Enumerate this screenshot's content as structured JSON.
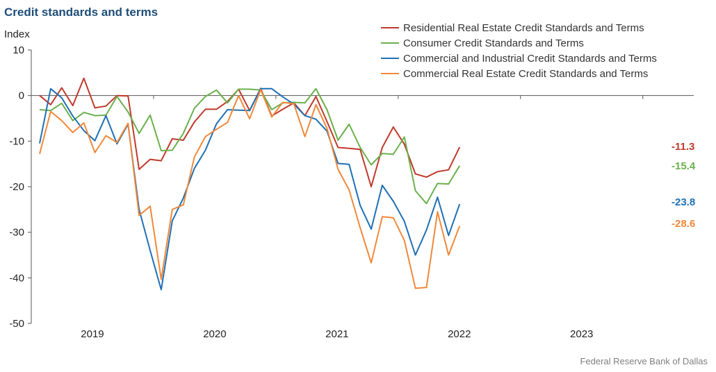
{
  "title": "Credit standards and terms",
  "source": "Federal Reserve Bank of Dallas",
  "chart_data": {
    "type": "line",
    "title": "Credit standards and terms",
    "ylabel": "Index",
    "xlabel": "",
    "ylim": [
      -50,
      10
    ],
    "yticks": [
      10,
      0,
      -10,
      -20,
      -30,
      -40,
      -50
    ],
    "ytick_labels": [
      "10",
      "0",
      "-10",
      "-20",
      "-30",
      "-40",
      "-50"
    ],
    "x_start_month": 0,
    "x_end_month": 65,
    "x_category_labels": [
      {
        "label": "2019",
        "mid_month": 6
      },
      {
        "label": "2020",
        "mid_month": 18
      },
      {
        "label": "2021",
        "mid_month": 30
      },
      {
        "label": "2022",
        "mid_month": 42
      },
      {
        "label": "2023",
        "mid_month": 54
      }
    ],
    "grid": false,
    "legend_position": "top-right",
    "series": [
      {
        "name": "Residential Real Estate Credit Standards and Terms",
        "color": "#c0392b",
        "end_label": "-11.3",
        "values": [
          0,
          -2,
          1.7,
          -2.2,
          3.8,
          -2.7,
          -2.3,
          0,
          -0.1,
          -16.2,
          -14,
          -14.3,
          -9.5,
          -9.8,
          -5.8,
          -3,
          -3,
          -1.3,
          1.4,
          -3.3,
          1.6,
          -4.5,
          -3,
          -1.6,
          -4.4,
          -0.2,
          -5.7,
          -11.4,
          -11.6,
          -11.8,
          -20,
          -11.4,
          -6.9,
          -10.7,
          -17.2,
          -17.9,
          -16.7,
          -16.3,
          -11.3
        ]
      },
      {
        "name": "Consumer Credit Standards and Terms",
        "color": "#6ab04c",
        "end_label": "-15.4",
        "values": [
          -3.1,
          -3.3,
          -1.7,
          -5.5,
          -3.7,
          -4.4,
          -4.3,
          -0.2,
          -3.6,
          -8.3,
          -4.3,
          -12.1,
          -12,
          -8.3,
          -2.8,
          -0.2,
          1.2,
          -1.6,
          1.4,
          1.4,
          1.2,
          -3.1,
          -1.6,
          -1.5,
          -1.6,
          1.5,
          -3.1,
          -9.8,
          -6.3,
          -11.4,
          -15.2,
          -12.7,
          -12.9,
          -9.1,
          -20.9,
          -23.7,
          -19.3,
          -19.4,
          -15.4
        ]
      },
      {
        "name": "Commercial and Industrial Credit Standards and Terms",
        "color": "#1f6fb5",
        "end_label": "-23.8",
        "values": [
          -10.5,
          1.5,
          -0.5,
          -4.5,
          -7.7,
          -9.9,
          -4.4,
          -10.6,
          -6.3,
          -25,
          -34,
          -42.6,
          -27.5,
          -22.5,
          -16,
          -12,
          -6.2,
          -3.1,
          -3.2,
          -3.3,
          1.5,
          1.5,
          -0.3,
          -1.9,
          -4.4,
          -5.2,
          -7.8,
          -14.9,
          -15.1,
          -24.1,
          -29.3,
          -19.7,
          -23.2,
          -27.6,
          -35,
          -29.5,
          -22.3,
          -30.7,
          -23.8
        ]
      },
      {
        "name": "Commercial Real Estate Credit Standards and Terms",
        "color": "#f0883a",
        "end_label": "-28.6",
        "values": [
          -12.8,
          -3.5,
          -5.5,
          -8.1,
          -6,
          -12.5,
          -8.8,
          -10.3,
          -6.1,
          -26.3,
          -24.3,
          -40.3,
          -25,
          -24,
          -13.5,
          -9,
          -7.4,
          -5.9,
          0,
          -5.1,
          1.3,
          -4.7,
          -1.5,
          -1.8,
          -9,
          -2,
          -7.2,
          -16.2,
          -20.7,
          -29,
          -36.7,
          -26.6,
          -26.8,
          -31.8,
          -42.3,
          -42.1,
          -25.5,
          -35,
          -28.6
        ]
      }
    ]
  }
}
